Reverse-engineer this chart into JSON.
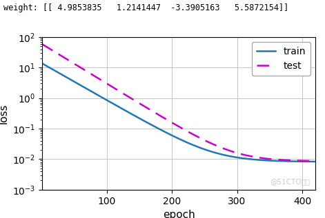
{
  "title_text": "weight: [[ 4.9853835   1.2141447  -3.3905163   5.5872154]]",
  "xlabel": "epoch",
  "ylabel": "loss",
  "xlim": [
    1,
    420
  ],
  "ylim_log": [
    -3,
    2
  ],
  "x_ticks": [
    100,
    200,
    300,
    400
  ],
  "train_color": "#1f77b4",
  "test_color": "#cc00cc",
  "legend_labels": [
    "train",
    "test"
  ],
  "watermark": "@51CTO博客",
  "train_start": 14.0,
  "train_floor": 0.0082,
  "train_decay": 0.028,
  "test_start": 60.0,
  "test_floor": 0.0085,
  "test_decay": 0.03,
  "fig_width": 4.71,
  "fig_height": 3.17,
  "dpi": 100
}
